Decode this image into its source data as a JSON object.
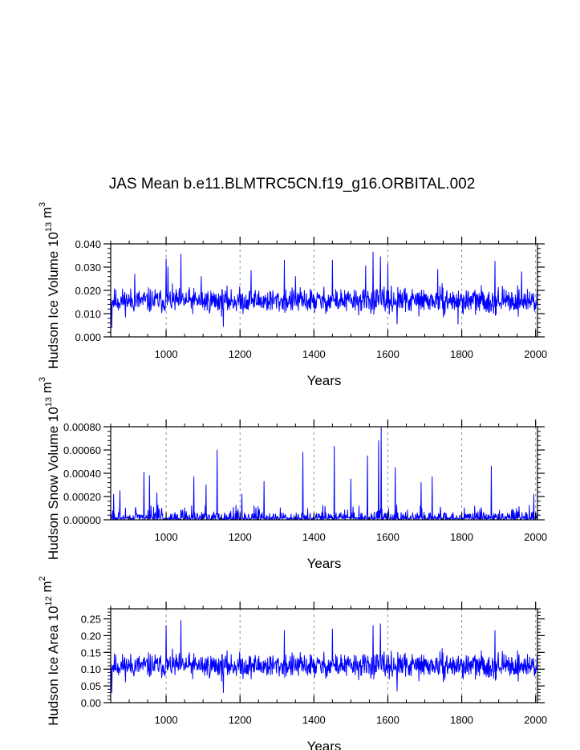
{
  "title": "JAS Mean b.e11.BLMTRC5CN.f19_g16.ORBITAL.002",
  "colors": {
    "series": "#0000ff",
    "axes": "#000000",
    "grid": "#8c8c8c",
    "background": "#ffffff"
  },
  "chart_data": [
    {
      "type": "line",
      "ylabel": {
        "name": "Hudson Ice Volume",
        "base": "10",
        "exp": "13",
        "unit": "m",
        "unit_exp": "3"
      },
      "xlabel": "Years",
      "xlim": [
        850,
        2005
      ],
      "ylim": [
        0,
        0.04
      ],
      "xticks": [
        "1000",
        "1200",
        "1400",
        "1600",
        "1800",
        "2000"
      ],
      "xtick_values": [
        1000,
        1200,
        1400,
        1600,
        1800,
        2000
      ],
      "yticks": [
        "0.000",
        "0.010",
        "0.020",
        "0.030",
        "0.040"
      ],
      "ytick_values": [
        0,
        0.01,
        0.02,
        0.03,
        0.04
      ],
      "grid": "x dashed at 1000,1200,1400,1600,1800,2000",
      "series": [
        {
          "name": "Hudson Ice Volume",
          "x_start": 850,
          "x_step": 1,
          "count": 1156,
          "pattern": "noise",
          "baseline": 0.0155,
          "spread": 0.0048,
          "seed": 11,
          "min_clip": 0.003,
          "peaks": [
            [
              853,
              0.004
            ],
            [
              915,
              0.027
            ],
            [
              1000,
              0.0335
            ],
            [
              1005,
              0.03
            ],
            [
              1040,
              0.0355
            ],
            [
              1095,
              0.026
            ],
            [
              1155,
              0.0045
            ],
            [
              1230,
              0.0285
            ],
            [
              1320,
              0.033
            ],
            [
              1350,
              0.026
            ],
            [
              1450,
              0.033
            ],
            [
              1540,
              0.0305
            ],
            [
              1560,
              0.0365
            ],
            [
              1580,
              0.0345
            ],
            [
              1600,
              0.0315
            ],
            [
              1625,
              0.0055
            ],
            [
              1735,
              0.029
            ],
            [
              1790,
              0.0055
            ],
            [
              1890,
              0.0325
            ],
            [
              1962,
              0.028
            ]
          ]
        }
      ]
    },
    {
      "type": "line",
      "ylabel": {
        "name": "Hudson Snow Volume",
        "base": "10",
        "exp": "13",
        "unit": "m",
        "unit_exp": "3"
      },
      "xlabel": "Years",
      "xlim": [
        850,
        2005
      ],
      "ylim": [
        0,
        0.0008
      ],
      "xticks": [
        "1000",
        "1200",
        "1400",
        "1600",
        "1800",
        "2000"
      ],
      "xtick_values": [
        1000,
        1200,
        1400,
        1600,
        1800,
        2000
      ],
      "yticks": [
        "0.00000",
        "0.00020",
        "0.00040",
        "0.00060",
        "0.00080"
      ],
      "ytick_values": [
        0,
        0.0002,
        0.0004,
        0.0006,
        0.0008
      ],
      "grid": "x dashed at 1000,1200,1400,1600,1800,2000",
      "series": [
        {
          "name": "Hudson Snow Volume",
          "x_start": 850,
          "x_step": 1,
          "count": 1156,
          "pattern": "spiky",
          "baseline": 0.0,
          "spread": 4e-05,
          "seed": 29,
          "min_clip": 0.0,
          "peaks": [
            [
              858,
              0.00022
            ],
            [
              875,
              0.00025
            ],
            [
              940,
              0.00041
            ],
            [
              955,
              0.00038
            ],
            [
              975,
              0.00023
            ],
            [
              1075,
              0.00037
            ],
            [
              1108,
              0.0003
            ],
            [
              1138,
              0.0006
            ],
            [
              1205,
              0.00022
            ],
            [
              1265,
              0.00033
            ],
            [
              1370,
              0.00058
            ],
            [
              1455,
              0.00063
            ],
            [
              1500,
              0.00035
            ],
            [
              1545,
              0.00055
            ],
            [
              1575,
              0.00068
            ],
            [
              1582,
              0.0008
            ],
            [
              1620,
              0.00045
            ],
            [
              1690,
              0.00032
            ],
            [
              1720,
              0.00037
            ],
            [
              1880,
              0.00046
            ],
            [
              1995,
              0.00022
            ]
          ]
        }
      ]
    },
    {
      "type": "line",
      "ylabel": {
        "name": "Hudson Ice Area",
        "base": "10",
        "exp": "12",
        "unit": "m",
        "unit_exp": "2"
      },
      "xlabel": "Years",
      "xlim": [
        850,
        2005
      ],
      "ylim": [
        0,
        0.28
      ],
      "xticks": [
        "1000",
        "1200",
        "1400",
        "1600",
        "1800",
        "2000"
      ],
      "xtick_values": [
        1000,
        1200,
        1400,
        1600,
        1800,
        2000
      ],
      "yticks": [
        "0.00",
        "0.05",
        "0.10",
        "0.15",
        "0.20",
        "0.25"
      ],
      "ytick_values": [
        0,
        0.05,
        0.1,
        0.15,
        0.2,
        0.25
      ],
      "grid": "x dashed at 1000,1200,1400,1600,1800,2000",
      "series": [
        {
          "name": "Hudson Ice Area",
          "x_start": 850,
          "x_step": 1,
          "count": 1156,
          "pattern": "noise",
          "baseline": 0.11,
          "spread": 0.033,
          "seed": 11,
          "min_clip": 0.02,
          "peaks": [
            [
              853,
              0.03
            ],
            [
              1000,
              0.23
            ],
            [
              1040,
              0.245
            ],
            [
              1155,
              0.03
            ],
            [
              1320,
              0.215
            ],
            [
              1450,
              0.22
            ],
            [
              1560,
              0.23
            ],
            [
              1580,
              0.235
            ],
            [
              1625,
              0.035
            ],
            [
              1890,
              0.215
            ]
          ]
        }
      ]
    }
  ]
}
